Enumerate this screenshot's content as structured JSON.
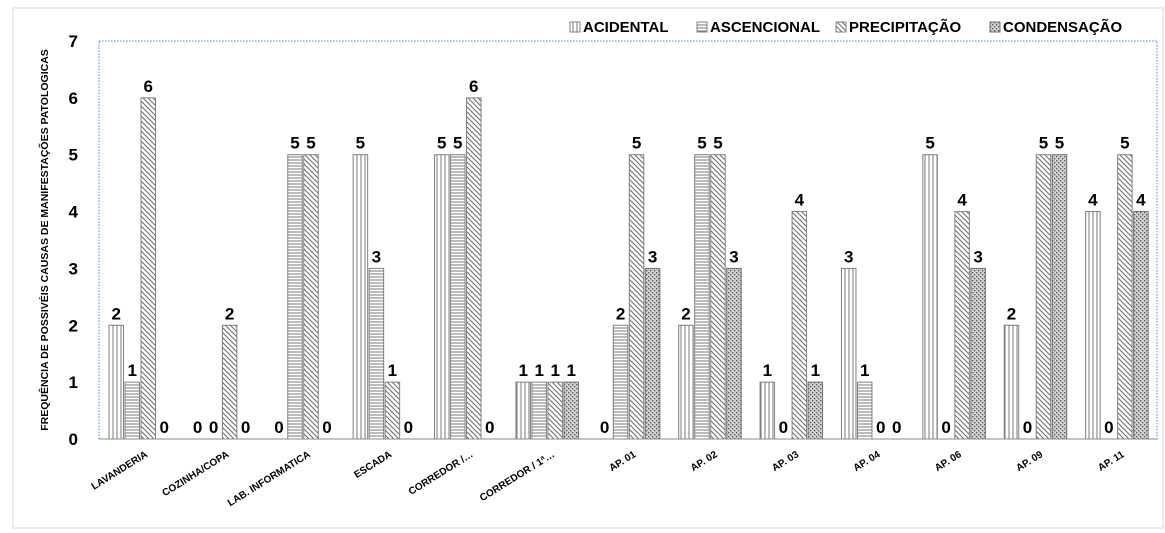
{
  "chart_data": {
    "type": "bar",
    "title": "",
    "xlabel": "",
    "ylabel": "FREQUÊNCIA DE POSSIVÉIS CAUSAS DE MANIFESTAÇÕES PATOLOGICAS",
    "ylim": [
      0,
      7
    ],
    "yticks": [
      "0",
      "1",
      "2",
      "3",
      "4",
      "5",
      "6",
      "7"
    ],
    "grid": false,
    "legend_position": "top-right",
    "categories": [
      "LAVANDERIA",
      "COZINHA/COPA",
      "LAB. INFORMATICA",
      "ESCADA",
      "CORREDOR /…",
      "CORREDOR / 1ª…",
      "AP. 01",
      "AP. 02",
      "AP. 03",
      "AP. 04",
      "AP. 06",
      "AP. 09",
      "AP. 11"
    ],
    "series": [
      {
        "name": "ACIDENTAL",
        "pattern": "vertical",
        "color": "#808080",
        "values": [
          2,
          0,
          0,
          5,
          5,
          1,
          0,
          2,
          1,
          3,
          5,
          2,
          4
        ]
      },
      {
        "name": "ASCENCIONAL",
        "pattern": "horizontal",
        "color": "#808080",
        "values": [
          1,
          0,
          5,
          3,
          5,
          1,
          2,
          5,
          0,
          1,
          0,
          0,
          0
        ]
      },
      {
        "name": "PRECIPITAÇÃO",
        "pattern": "diagonal",
        "color": "#808080",
        "values": [
          6,
          2,
          5,
          1,
          6,
          1,
          5,
          5,
          4,
          0,
          4,
          5,
          5
        ]
      },
      {
        "name": "CONDENSAÇÃO",
        "pattern": "dots",
        "color": "#707070",
        "values": [
          0,
          0,
          0,
          0,
          0,
          1,
          3,
          3,
          1,
          0,
          3,
          5,
          4
        ]
      }
    ]
  }
}
